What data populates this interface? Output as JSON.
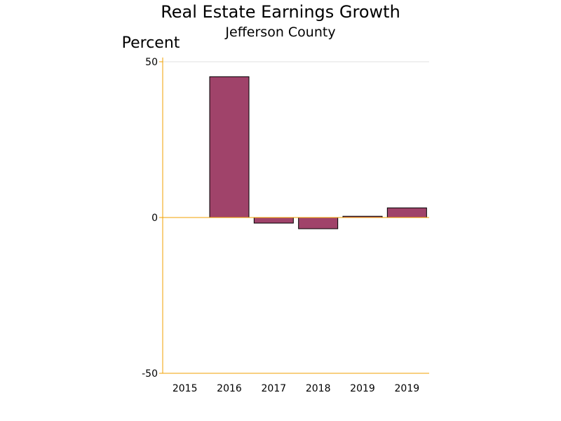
{
  "chart_data": {
    "type": "bar",
    "title": "Real Estate Earnings Growth",
    "subtitle": "Jefferson County",
    "ylabel": "Percent",
    "xlabel": "",
    "categories": [
      "2015",
      "2016",
      "2017",
      "2018",
      "2019",
      "2019"
    ],
    "values": [
      0,
      45.2,
      -1.8,
      -3.6,
      0.4,
      3.1
    ],
    "ylim": [
      -50,
      50
    ],
    "yticks": [
      50,
      0,
      -50
    ],
    "grid": false,
    "legend": "none",
    "colors": {
      "bar_fill": "#a0436a",
      "bar_stroke": "#000000",
      "axis": "#f0a000",
      "top_rule": "#e0e0e0"
    }
  }
}
